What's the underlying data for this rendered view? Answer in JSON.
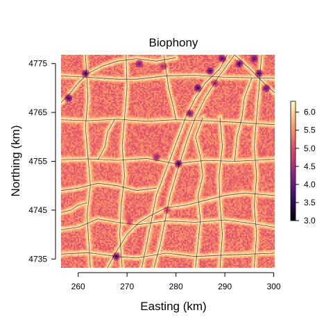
{
  "chart_data": {
    "type": "heatmap",
    "title": "Biophony",
    "xlabel": "Easting (km)",
    "ylabel": "Northing (km)",
    "xlim": [
      256.5,
      300.2
    ],
    "ylim": [
      4733.2,
      4776.8
    ],
    "x_ticks": [
      260,
      270,
      280,
      290,
      300
    ],
    "y_ticks": [
      4735,
      4745,
      4755,
      4765,
      4775
    ],
    "colorbar": {
      "ticks": [
        6.0,
        5.5,
        5.0,
        4.5,
        4.0,
        3.5,
        3.0
      ],
      "tick_labels": [
        "6.0",
        "5.5",
        "5.0",
        "4.5",
        "4.0",
        "3.5",
        "3.0"
      ],
      "range": [
        3.0,
        6.3
      ]
    },
    "colormap": [
      "#000004",
      "#3b0f70",
      "#8c2981",
      "#de4968",
      "#fe9f6d",
      "#fcfdbf"
    ],
    "background_value_range": [
      5.0,
      5.6
    ],
    "road_value": 6.2,
    "low_value_hotspots": [
      {
        "x": 297,
        "y": 4773,
        "value": 3.1
      },
      {
        "x": 293,
        "y": 4775,
        "value": 3.2
      },
      {
        "x": 287,
        "y": 4773.5,
        "value": 3.3
      },
      {
        "x": 284.5,
        "y": 4770,
        "value": 3.2
      },
      {
        "x": 289.5,
        "y": 4776,
        "value": 3.3
      },
      {
        "x": 298.5,
        "y": 4770,
        "value": 3.4
      },
      {
        "x": 261.5,
        "y": 4773,
        "value": 3.2
      },
      {
        "x": 258,
        "y": 4768,
        "value": 3.1
      },
      {
        "x": 280.5,
        "y": 4754.5,
        "value": 3.0
      },
      {
        "x": 267.8,
        "y": 4735.5,
        "value": 3.1
      },
      {
        "x": 272.5,
        "y": 4775,
        "value": 3.8
      },
      {
        "x": 282.8,
        "y": 4764.8,
        "value": 3.6
      },
      {
        "x": 288,
        "y": 4771,
        "value": 3.9
      },
      {
        "x": 296,
        "y": 4776,
        "value": 3.5
      },
      {
        "x": 277.5,
        "y": 4774.5,
        "value": 4.2
      },
      {
        "x": 276,
        "y": 4755.8,
        "value": 4.0
      },
      {
        "x": 278.2,
        "y": 4745,
        "value": 4.3
      },
      {
        "x": 270.5,
        "y": 4742.5,
        "value": 4.6
      }
    ],
    "roads": [
      [
        [
          256.5,
          4763.5
        ],
        [
          262,
          4763.3
        ],
        [
          268,
          4763.6
        ],
        [
          274,
          4763.2
        ],
        [
          280,
          4763.5
        ],
        [
          286,
          4763.3
        ],
        [
          292,
          4763.0
        ],
        [
          300.2,
          4762.5
        ]
      ],
      [
        [
          256.5,
          4772.5
        ],
        [
          262,
          4772.2
        ],
        [
          268,
          4771.8
        ],
        [
          272,
          4771.8
        ],
        [
          278,
          4772.5
        ],
        [
          284,
          4772.6
        ],
        [
          290,
          4772.2
        ],
        [
          300.2,
          4772.0
        ]
      ],
      [
        [
          256.5,
          4755.3
        ],
        [
          262,
          4755.5
        ],
        [
          268,
          4755.2
        ],
        [
          274,
          4755.6
        ],
        [
          280,
          4754.5
        ],
        [
          286,
          4755.2
        ],
        [
          292,
          4755.0
        ],
        [
          300.2,
          4755.4
        ]
      ],
      [
        [
          256.5,
          4741.0
        ],
        [
          260,
          4741.5
        ],
        [
          264,
          4743.2
        ],
        [
          268,
          4742.5
        ],
        [
          272,
          4742.0
        ],
        [
          278,
          4742.8
        ],
        [
          284,
          4742.5
        ],
        [
          290,
          4743.0
        ],
        [
          296,
          4742.2
        ],
        [
          300.2,
          4741.5
        ]
      ],
      [
        [
          256.5,
          4736.0
        ],
        [
          262,
          4736.3
        ],
        [
          268,
          4735.5
        ],
        [
          272,
          4735.2
        ],
        [
          278,
          4736.2
        ],
        [
          284,
          4735.5
        ],
        [
          290,
          4735.8
        ],
        [
          300.2,
          4736.2
        ]
      ],
      [
        [
          273.0,
          4733.2
        ],
        [
          274.0,
          4738
        ],
        [
          275.0,
          4743
        ],
        [
          276.0,
          4748
        ],
        [
          277.5,
          4752
        ],
        [
          279.0,
          4756
        ],
        [
          280.5,
          4760
        ],
        [
          282.0,
          4764
        ],
        [
          284.0,
          4768
        ],
        [
          286.0,
          4771
        ],
        [
          289.0,
          4774
        ],
        [
          290.5,
          4776.8
        ]
      ],
      [
        [
          275.5,
          4733.2
        ],
        [
          276.8,
          4738
        ],
        [
          277.8,
          4743
        ],
        [
          278.8,
          4748
        ],
        [
          280.0,
          4752
        ],
        [
          281.2,
          4756
        ],
        [
          282.5,
          4760
        ],
        [
          284.0,
          4764
        ],
        [
          286.0,
          4768
        ],
        [
          288.5,
          4772
        ],
        [
          292.0,
          4776.8
        ]
      ],
      [
        [
          262.5,
          4733.2
        ],
        [
          262.2,
          4738
        ],
        [
          261.8,
          4744
        ],
        [
          262.5,
          4750
        ],
        [
          262.0,
          4756
        ],
        [
          261.5,
          4762
        ],
        [
          262.0,
          4768
        ],
        [
          261.5,
          4776.8
        ]
      ],
      [
        [
          269.0,
          4733.2
        ],
        [
          268.5,
          4740
        ],
        [
          268.8,
          4746
        ],
        [
          269.5,
          4752
        ],
        [
          269.0,
          4758
        ],
        [
          269.5,
          4764
        ],
        [
          270.0,
          4770
        ],
        [
          269.8,
          4776.8
        ]
      ],
      [
        [
          289.0,
          4733.2
        ],
        [
          289.5,
          4740
        ],
        [
          289.0,
          4746
        ],
        [
          288.8,
          4752
        ],
        [
          289.5,
          4758
        ],
        [
          289.0,
          4764
        ]
      ],
      [
        [
          296.0,
          4733.2
        ],
        [
          296.5,
          4740
        ],
        [
          296.0,
          4746
        ],
        [
          296.5,
          4752
        ],
        [
          296.0,
          4758
        ],
        [
          296.5,
          4764
        ],
        [
          297.0,
          4770
        ],
        [
          297.5,
          4776.8
        ]
      ],
      [
        [
          256.5,
          4767.0
        ],
        [
          258.0,
          4768.5
        ],
        [
          260.0,
          4771.0
        ],
        [
          262.0,
          4773.0
        ],
        [
          265.0,
          4774.5
        ],
        [
          268.0,
          4775.5
        ],
        [
          272.0,
          4776.0
        ],
        [
          276.0,
          4775.5
        ],
        [
          280.0,
          4776.2
        ]
      ],
      [
        [
          292.0,
          4776.8
        ],
        [
          295.0,
          4774
        ],
        [
          298.0,
          4771
        ],
        [
          300.2,
          4769
        ]
      ],
      [
        [
          266.0,
          4733.2
        ],
        [
          267.5,
          4736
        ],
        [
          270.0,
          4740
        ],
        [
          272.5,
          4742.5
        ],
        [
          275.0,
          4744
        ],
        [
          278.0,
          4745.5
        ],
        [
          282.0,
          4746
        ],
        [
          286.0,
          4747
        ],
        [
          290.0,
          4748
        ],
        [
          294.0,
          4748.5
        ],
        [
          300.2,
          4748
        ]
      ],
      [
        [
          256.5,
          4749.0
        ],
        [
          260.0,
          4749.5
        ],
        [
          264.0,
          4750.5
        ],
        [
          268.0,
          4750.0
        ],
        [
          272.0,
          4749.0
        ],
        [
          276.0,
          4749.5
        ]
      ],
      [
        [
          284.0,
          4733.2
        ],
        [
          284.5,
          4738
        ],
        [
          285.0,
          4743
        ],
        [
          284.5,
          4748
        ],
        [
          285.5,
          4752
        ],
        [
          285.0,
          4756
        ],
        [
          284.0,
          4760
        ],
        [
          285.5,
          4764
        ]
      ],
      [
        [
          264.0,
          4755.3
        ],
        [
          265.5,
          4758
        ],
        [
          266.0,
          4761
        ],
        [
          267.5,
          4763.6
        ]
      ],
      [
        [
          292.0,
          4755.0
        ],
        [
          292.5,
          4760
        ],
        [
          293.5,
          4764
        ],
        [
          294.0,
          4768
        ],
        [
          295.5,
          4772
        ]
      ],
      [
        [
          277.5,
          4776.8
        ],
        [
          278.5,
          4770
        ],
        [
          279.5,
          4766
        ],
        [
          280.0,
          4763.5
        ]
      ],
      [
        [
          256.5,
          4744.5
        ],
        [
          258.5,
          4745
        ],
        [
          260.0,
          4746
        ],
        [
          261.8,
          4746.5
        ]
      ]
    ]
  }
}
